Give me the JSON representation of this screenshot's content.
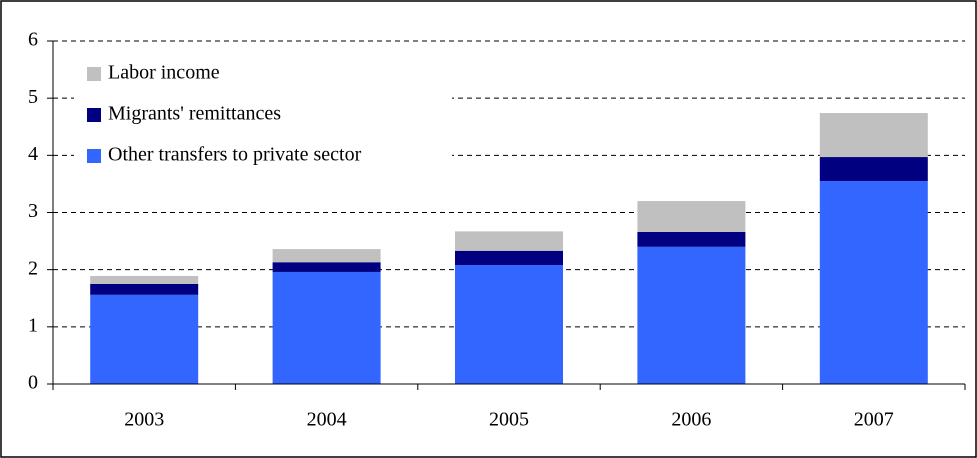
{
  "chart_data": {
    "type": "stacked-bar",
    "categories": [
      "2003",
      "2004",
      "2005",
      "2006",
      "2007"
    ],
    "series": [
      {
        "name": "Other transfers to private sector",
        "color": "#3366ff",
        "values": [
          1.56,
          1.96,
          2.08,
          2.4,
          3.55
        ]
      },
      {
        "name": "Migrants' remittances",
        "color": "#000080",
        "values": [
          0.19,
          0.17,
          0.25,
          0.26,
          0.42
        ]
      },
      {
        "name": "Labor income",
        "color": "#c0c0c0",
        "values": [
          0.14,
          0.23,
          0.34,
          0.54,
          0.77
        ]
      }
    ],
    "ylim": [
      0,
      6
    ],
    "yticks": [
      0,
      1,
      2,
      3,
      4,
      5,
      6
    ],
    "grid": true,
    "legend": "top-left"
  }
}
